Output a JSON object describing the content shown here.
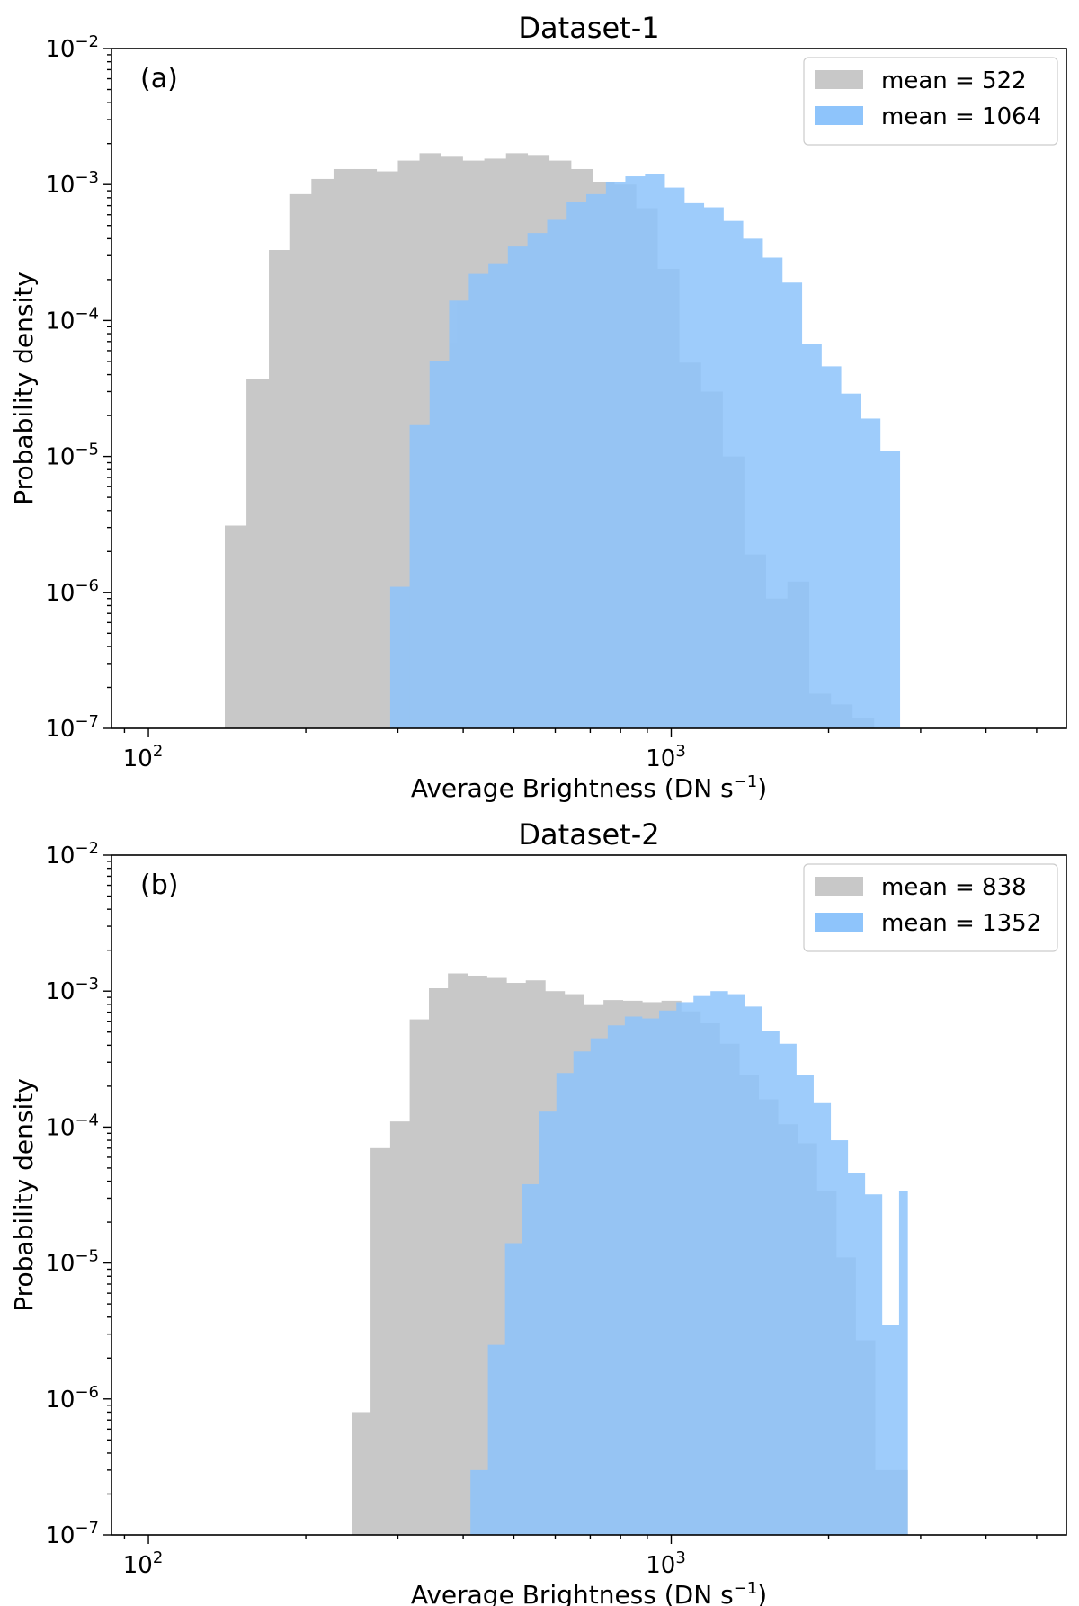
{
  "chart_data": [
    {
      "type": "histogram",
      "title": "Dataset-1",
      "panel_label": "(a)",
      "xlabel": "Average Brightness (DN s",
      "xlabel_exponent": "−1",
      "xlabel_close": ")",
      "ylabel": "Probability density",
      "xscale": "log",
      "yscale": "log",
      "xlim": [
        85,
        5700
      ],
      "ylim": [
        1e-07,
        0.01
      ],
      "xticks": [
        {
          "value": 100,
          "base": "10",
          "exp": "2"
        },
        {
          "value": 1000,
          "base": "10",
          "exp": "3"
        }
      ],
      "yticks": [
        {
          "value": 1e-07,
          "base": "10",
          "exp": "−7"
        },
        {
          "value": 1e-06,
          "base": "10",
          "exp": "−6"
        },
        {
          "value": 1e-05,
          "base": "10",
          "exp": "−5"
        },
        {
          "value": 0.0001,
          "base": "10",
          "exp": "−4"
        },
        {
          "value": 0.001,
          "base": "10",
          "exp": "−3"
        },
        {
          "value": 0.01,
          "base": "10",
          "exp": "−2"
        }
      ],
      "legend_position": "upper right",
      "series": [
        {
          "name": "mean = 522",
          "color": "#c8c8c8",
          "bin_edges": [
            140,
            154,
            170,
            186,
            205,
            226,
            248,
            273,
            300,
            330,
            363,
            399,
            439,
            483,
            531,
            584,
            643,
            707,
            778,
            856,
            941,
            1035,
            1139,
            1253,
            1378,
            1516,
            1668,
            1834,
            2018,
            2219,
            2441,
            2685
          ],
          "values": [
            3.1e-06,
            3.7e-05,
            0.00033,
            0.00085,
            0.0011,
            0.0013,
            0.0013,
            0.00125,
            0.0015,
            0.0017,
            0.0016,
            0.0015,
            0.00155,
            0.0017,
            0.00165,
            0.0015,
            0.0013,
            0.00105,
            0.001,
            0.00067,
            0.00024,
            4.9e-05,
            3e-05,
            1e-05,
            1.9e-06,
            9e-07,
            1.2e-06,
            1.8e-07,
            1.5e-07,
            1.2e-07,
            1e-07
          ]
        },
        {
          "name": "mean = 1064",
          "color": "#8ec4fb",
          "bin_edges": [
            290,
            316,
            345,
            376,
            410,
            447,
            487,
            531,
            579,
            631,
            688,
            750,
            817,
            891,
            971,
            1059,
            1154,
            1258,
            1371,
            1495,
            1630,
            1777,
            1937,
            2111,
            2302,
            2509,
            2736
          ],
          "values": [
            1.1e-06,
            1.7e-05,
            5e-05,
            0.00014,
            0.00022,
            0.00026,
            0.00035,
            0.00044,
            0.00055,
            0.00074,
            0.00085,
            0.00105,
            0.00115,
            0.0012,
            0.00095,
            0.00073,
            0.00068,
            0.00054,
            0.0004,
            0.00029,
            0.00019,
            6.7e-05,
            4.6e-05,
            2.9e-05,
            1.9e-05,
            1.1e-05
          ]
        }
      ]
    },
    {
      "type": "histogram",
      "title": "Dataset-2",
      "panel_label": "(b)",
      "xlabel": "Average Brightness (DN s",
      "xlabel_exponent": "−1",
      "xlabel_close": ")",
      "ylabel": "Probability density",
      "xscale": "log",
      "yscale": "log",
      "xlim": [
        85,
        5700
      ],
      "ylim": [
        1e-07,
        0.01
      ],
      "xticks": [
        {
          "value": 100,
          "base": "10",
          "exp": "2"
        },
        {
          "value": 1000,
          "base": "10",
          "exp": "3"
        }
      ],
      "yticks": [
        {
          "value": 1e-07,
          "base": "10",
          "exp": "−7"
        },
        {
          "value": 1e-06,
          "base": "10",
          "exp": "−6"
        },
        {
          "value": 1e-05,
          "base": "10",
          "exp": "−5"
        },
        {
          "value": 0.0001,
          "base": "10",
          "exp": "−4"
        },
        {
          "value": 0.001,
          "base": "10",
          "exp": "−3"
        },
        {
          "value": 0.01,
          "base": "10",
          "exp": "−2"
        }
      ],
      "legend_position": "upper right",
      "series": [
        {
          "name": "mean = 838",
          "color": "#c8c8c8",
          "bin_edges": [
            245,
            266,
            290,
            316,
            344,
            374,
            408,
            444,
            484,
            527,
            574,
            625,
            681,
            742,
            808,
            880,
            958,
            1044,
            1137,
            1238,
            1349,
            1469,
            1600,
            1743,
            1898,
            2068,
            2252,
            2453,
            2672,
            2831
          ],
          "values": [
            8e-07,
            7e-05,
            0.00011,
            0.00062,
            0.00105,
            0.00135,
            0.0013,
            0.00125,
            0.00115,
            0.0012,
            0.001,
            0.00095,
            0.00079,
            0.00086,
            0.00085,
            0.00083,
            0.00085,
            0.00071,
            0.00058,
            0.00041,
            0.00024,
            0.00016,
            0.000105,
            7.6e-05,
            3.4e-05,
            1.1e-05,
            2.7e-06,
            3e-07,
            3e-07
          ]
        },
        {
          "name": "mean = 1352",
          "color": "#8ec4fb",
          "bin_edges": [
            413,
            446,
            481,
            518,
            559,
            603,
            650,
            701,
            756,
            815,
            879,
            948,
            1023,
            1103,
            1189,
            1282,
            1383,
            1491,
            1608,
            1734,
            1870,
            2017,
            2175,
            2345,
            2529,
            2728,
            2831
          ],
          "values": [
            3e-07,
            2.5e-06,
            1.4e-05,
            3.8e-05,
            0.00013,
            0.00025,
            0.00036,
            0.00045,
            0.00056,
            0.00065,
            0.00063,
            0.00072,
            0.00083,
            0.00092,
            0.001,
            0.00095,
            0.00077,
            0.00051,
            0.00041,
            0.00024,
            0.00015,
            8e-05,
            4.6e-05,
            3.2e-05,
            3.5e-06,
            3.4e-05
          ]
        }
      ]
    }
  ]
}
